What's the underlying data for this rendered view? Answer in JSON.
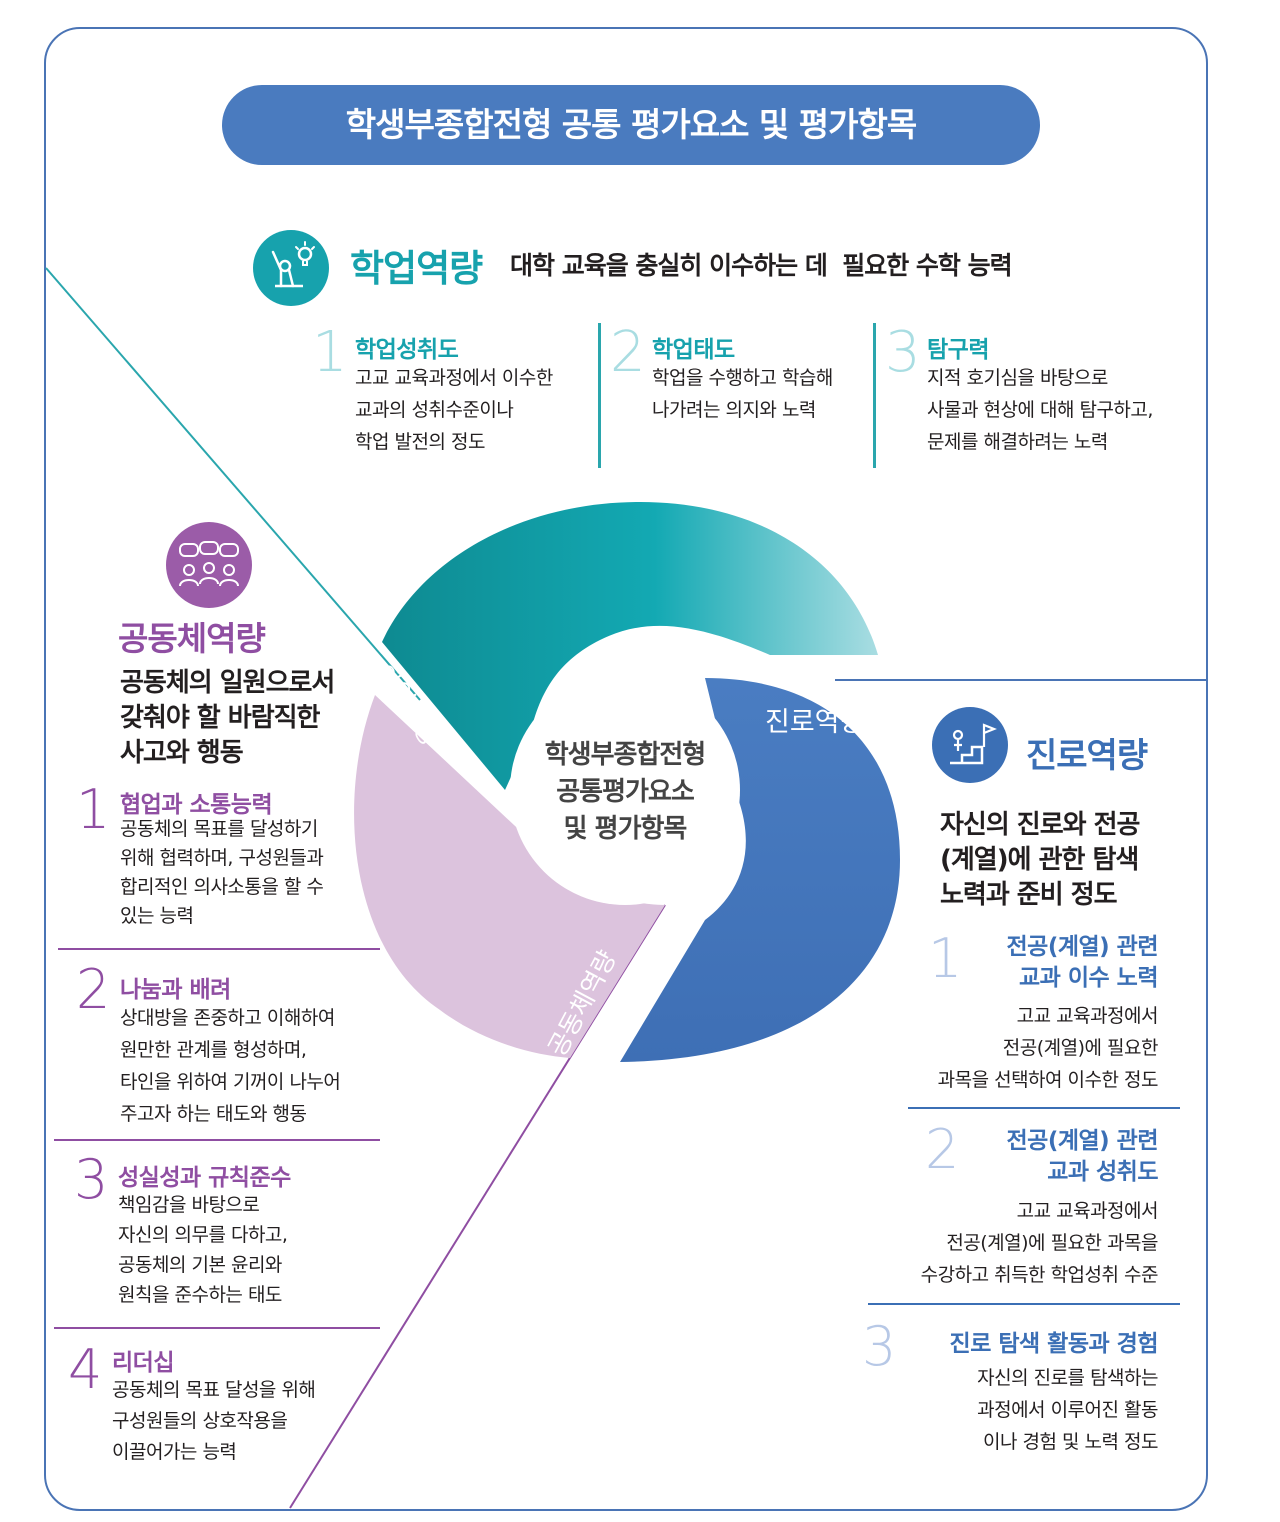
{
  "banner_title": "학생부종합전형 공통 평가요소 및 평가항목",
  "academic": {
    "title": "학업역량",
    "subtitle": "대학 교육을 충실히 이수하는 데  필요한 수학 능력",
    "icon": "person-with-lightbulb-icon",
    "color": "#17a2ad",
    "items": [
      {
        "num": "1",
        "title": "학업성취도",
        "desc": "고교 교육과정에서 이수한\n교과의 성취수준이나\n학업 발전의 정도"
      },
      {
        "num": "2",
        "title": "학업태도",
        "desc": "학업을 수행하고 학습해\n나가려는 의지와 노력"
      },
      {
        "num": "3",
        "title": "탐구력",
        "desc": "지적 호기심을 바탕으로\n사물과 현상에 대해 탐구하고,\n문제를 해결하려는 노력"
      }
    ]
  },
  "community": {
    "title": "공동체역량",
    "subtitle": "공동체의 일원으로서\n갖춰야 할 바람직한\n사고와 행동",
    "icon": "people-chat-icon",
    "color": "#8f4ea2",
    "items": [
      {
        "num": "1",
        "title": "협업과 소통능력",
        "desc": "공동체의 목표를 달성하기\n위해 협력하며, 구성원들과\n합리적인 의사소통을 할 수\n있는 능력"
      },
      {
        "num": "2",
        "title": "나눔과 배려",
        "desc": "상대방을 존중하고 이해하여\n원만한 관계를 형성하며,\n타인을 위하여 기꺼이 나누어\n주고자 하는 태도와 행동"
      },
      {
        "num": "3",
        "title": "성실성과 규칙준수",
        "desc": "책임감을 바탕으로\n자신의 의무를 다하고,\n공동체의 기본 윤리와\n원칙을 준수하는 태도"
      },
      {
        "num": "4",
        "title": "리더십",
        "desc": "공동체의 목표 달성을 위해\n구성원들의 상호작용을\n이끌어가는 능력"
      }
    ]
  },
  "career": {
    "title": "진로역량",
    "subtitle": "자신의 진로와 전공\n(계열)에 관한 탐색\n노력과 준비 정도",
    "icon": "stairs-flag-icon",
    "color": "#3b6fb5",
    "items": [
      {
        "num": "1",
        "title": "전공(계열) 관련\n교과 이수 노력",
        "desc": "고교 교육과정에서\n전공(계열)에 필요한\n과목을 선택하여 이수한 정도"
      },
      {
        "num": "2",
        "title": "전공(계열) 관련\n교과 성취도",
        "desc": "고교 교육과정에서\n전공(계열)에 필요한 과목을\n수강하고 취득한 학업성취 수준"
      },
      {
        "num": "3",
        "title": "진로 탐색 활동과 경험",
        "desc": "자신의 진로를 탐색하는\n과정에서 이루어진 활동\n이나 경험 및 노력 정도"
      }
    ]
  },
  "ring": {
    "academic_label": "학업역량",
    "career_label": "진로역량",
    "community_label": "공동체역량",
    "center_text": "학생부종합전형\n공통평가요소\n및  평가항목"
  }
}
